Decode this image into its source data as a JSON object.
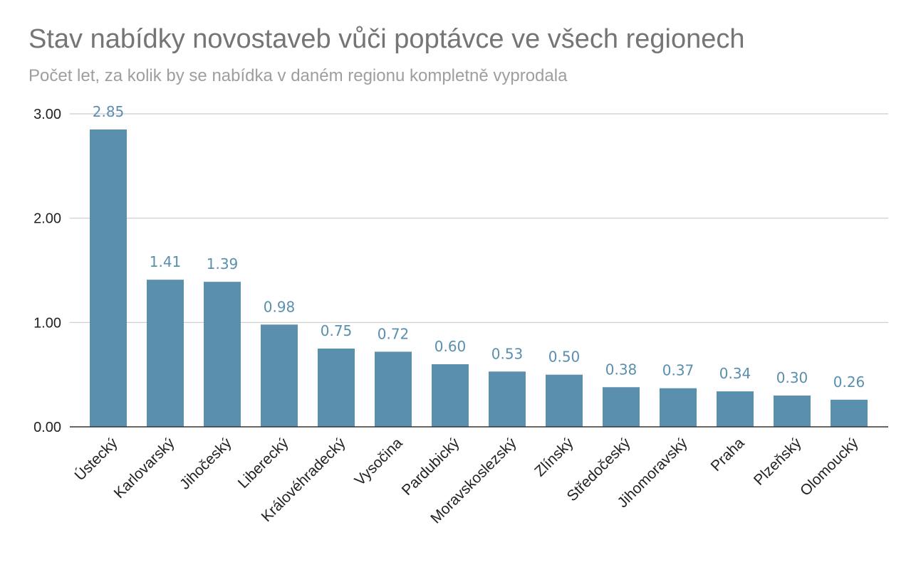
{
  "chart_data": {
    "type": "bar",
    "title": "Stav nabídky novostaveb vůči poptávce ve všech regionech",
    "subtitle": "Počet let, za kolik by se nabídka v daném regionu kompletně vyprodala",
    "categories": [
      "Ústecký",
      "Karlovarský",
      "Jihočeský",
      "Liberecký",
      "Královéhradecký",
      "Vysočina",
      "Pardubický",
      "Moravskoslezský",
      "Zlínský",
      "Středočeský",
      "Jihomoravský",
      "Praha",
      "Plzeňský",
      "Olomoucký"
    ],
    "values": [
      2.85,
      1.41,
      1.39,
      0.98,
      0.75,
      0.72,
      0.6,
      0.53,
      0.5,
      0.38,
      0.37,
      0.34,
      0.3,
      0.26
    ],
    "value_labels": [
      "2.85",
      "1.41",
      "1.39",
      "0.98",
      "0.75",
      "0.72",
      "0.60",
      "0.53",
      "0.50",
      "0.38",
      "0.37",
      "0.34",
      "0.30",
      "0.26"
    ],
    "yticks": [
      "0.00",
      "1.00",
      "2.00",
      "3.00"
    ],
    "ylim": [
      0,
      3
    ],
    "xlabel": "",
    "ylabel": "",
    "grid": true,
    "legend": "none",
    "bar_color": "#5a8fae",
    "label_color": "#5a8fae"
  }
}
